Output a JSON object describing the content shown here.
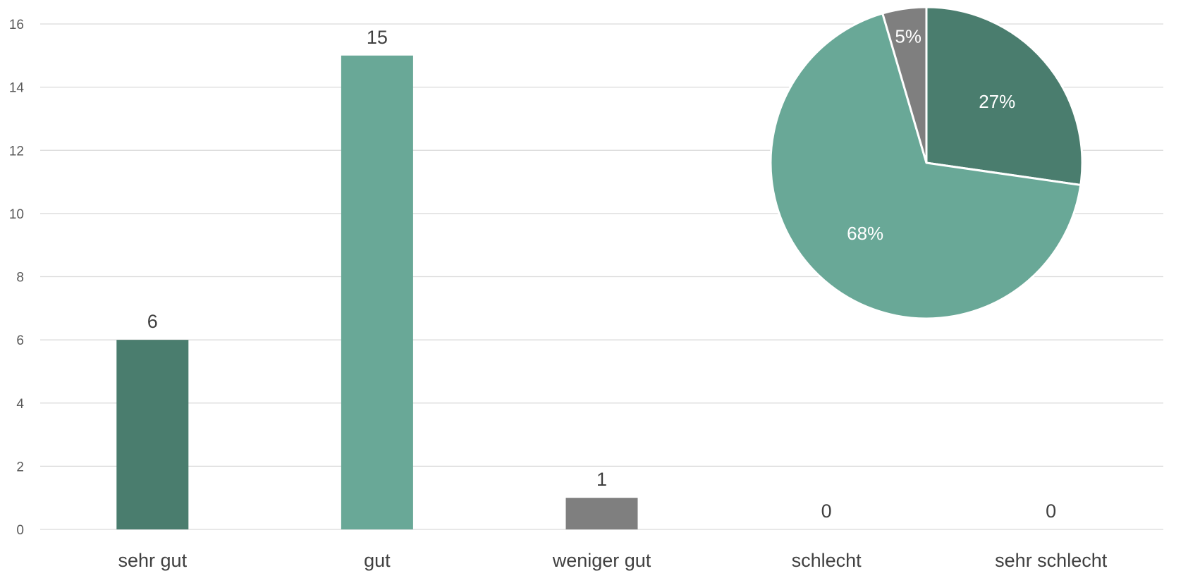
{
  "chart_data": [
    {
      "type": "bar",
      "categories": [
        "sehr gut",
        "gut",
        "weniger gut",
        "schlecht",
        "sehr schlecht"
      ],
      "values": [
        6,
        15,
        1,
        0,
        0
      ],
      "data_labels": [
        "6",
        "15",
        "1",
        "0",
        "0"
      ],
      "colors": [
        "#4a7d6e",
        "#69a897",
        "#7f7f7f",
        "#7f7f7f",
        "#7f7f7f"
      ],
      "ylim": [
        0,
        16
      ],
      "yticks": [
        "0",
        "2",
        "4",
        "6",
        "8",
        "10",
        "12",
        "14",
        "16"
      ],
      "grid": true,
      "legend": "none"
    },
    {
      "type": "pie",
      "slices": [
        {
          "value": 6,
          "label": "27%",
          "color": "#4a7d6e"
        },
        {
          "value": 15,
          "label": "68%",
          "color": "#69a897"
        },
        {
          "value": 1,
          "label": "5%",
          "color": "#7f7f7f"
        }
      ],
      "start": "12 o'clock",
      "direction": "clockwise",
      "placement": "top-right"
    }
  ]
}
